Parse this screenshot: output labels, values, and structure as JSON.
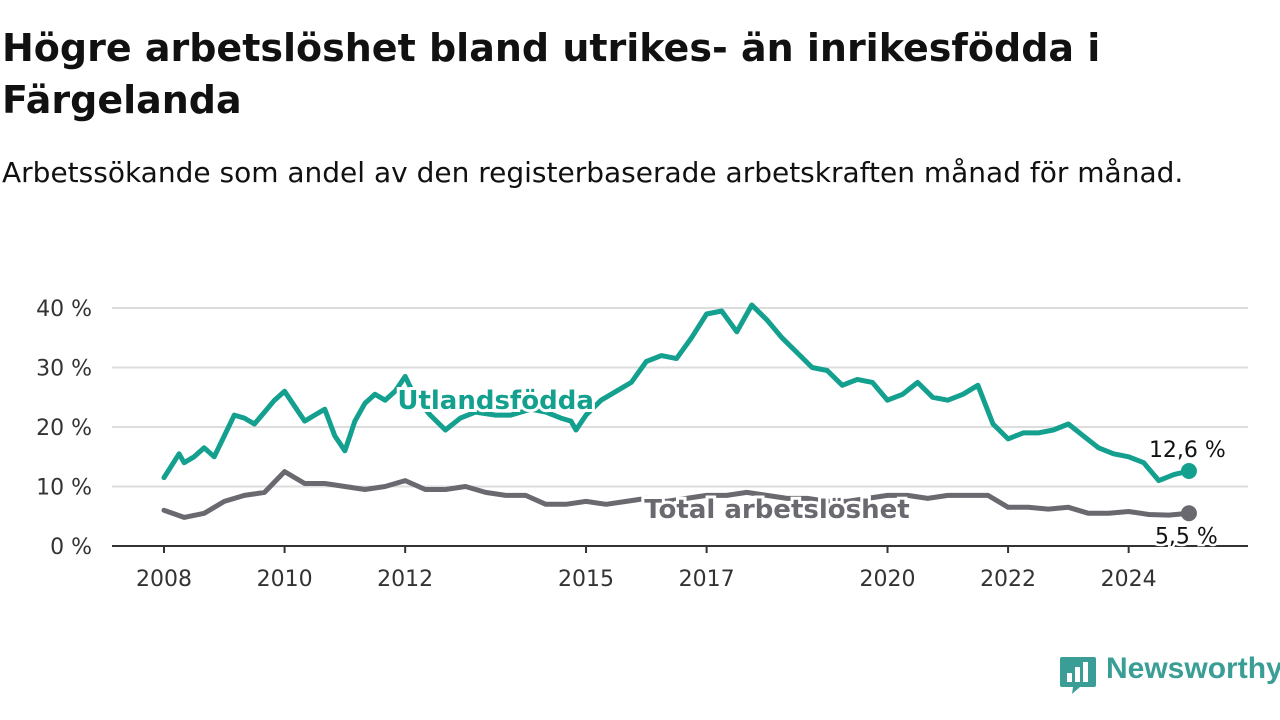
{
  "title": "Högre arbetslöshet bland utrikes- än inrikesfödda i Färgelanda",
  "subtitle": "Arbetssökande som andel av den registerbaserade arbetskraften månad för månad.",
  "brand": {
    "name": "Newsworthy",
    "icon": "newsworthy-chart-bubble-icon",
    "color": "#3a9e96"
  },
  "chart_data": {
    "type": "line",
    "xlabel": "",
    "ylabel": "",
    "ylim": [
      0,
      40
    ],
    "yticks": [
      0,
      10,
      20,
      30,
      40
    ],
    "ytick_labels": [
      "0 %",
      "10 %",
      "20 %",
      "30 %",
      "40 %"
    ],
    "xlim": [
      "2008-01",
      "2025-03"
    ],
    "xticks": [
      "2008-01",
      "2010-01",
      "2012-01",
      "2015-01",
      "2017-01",
      "2020-01",
      "2022-01",
      "2024-01"
    ],
    "xtick_labels": [
      "2008",
      "2010",
      "2012",
      "2015",
      "2017",
      "2020",
      "2022",
      "2024"
    ],
    "grid": "horizontal",
    "legend": "inline labels",
    "series": [
      {
        "name": "Utlandsfödda",
        "color": "#14a08e",
        "end_label": "12,6 %",
        "points": [
          [
            "2008-01",
            11.5
          ],
          [
            "2008-04",
            15.5
          ],
          [
            "2008-05",
            14.0
          ],
          [
            "2008-07",
            15.0
          ],
          [
            "2008-09",
            16.5
          ],
          [
            "2008-11",
            15.0
          ],
          [
            "2009-01",
            18.5
          ],
          [
            "2009-03",
            22.0
          ],
          [
            "2009-05",
            21.5
          ],
          [
            "2009-07",
            20.5
          ],
          [
            "2009-09",
            22.5
          ],
          [
            "2009-11",
            24.5
          ],
          [
            "2010-01",
            26.0
          ],
          [
            "2010-03",
            23.5
          ],
          [
            "2010-05",
            21.0
          ],
          [
            "2010-07",
            22.0
          ],
          [
            "2010-09",
            23.0
          ],
          [
            "2010-11",
            18.5
          ],
          [
            "2011-01",
            16.0
          ],
          [
            "2011-03",
            21.0
          ],
          [
            "2011-05",
            24.0
          ],
          [
            "2011-07",
            25.5
          ],
          [
            "2011-09",
            24.5
          ],
          [
            "2011-11",
            26.0
          ],
          [
            "2012-01",
            28.5
          ],
          [
            "2012-03",
            25.0
          ],
          [
            "2012-06",
            22.0
          ],
          [
            "2012-09",
            19.5
          ],
          [
            "2012-12",
            21.5
          ],
          [
            "2013-03",
            22.5
          ],
          [
            "2013-07",
            22.0
          ],
          [
            "2013-10",
            22.0
          ],
          [
            "2014-02",
            23.0
          ],
          [
            "2014-05",
            22.5
          ],
          [
            "2014-08",
            21.5
          ],
          [
            "2014-10",
            21.0
          ],
          [
            "2014-11",
            19.5
          ],
          [
            "2015-01",
            22.0
          ],
          [
            "2015-04",
            24.5
          ],
          [
            "2015-07",
            26.0
          ],
          [
            "2015-10",
            27.5
          ],
          [
            "2016-01",
            31.0
          ],
          [
            "2016-04",
            32.0
          ],
          [
            "2016-07",
            31.5
          ],
          [
            "2016-10",
            35.0
          ],
          [
            "2017-01",
            39.0
          ],
          [
            "2017-04",
            39.5
          ],
          [
            "2017-07",
            36.0
          ],
          [
            "2017-10",
            40.5
          ],
          [
            "2018-01",
            38.0
          ],
          [
            "2018-04",
            35.0
          ],
          [
            "2018-07",
            32.5
          ],
          [
            "2018-10",
            30.0
          ],
          [
            "2019-01",
            29.5
          ],
          [
            "2019-04",
            27.0
          ],
          [
            "2019-07",
            28.0
          ],
          [
            "2019-10",
            27.5
          ],
          [
            "2020-01",
            24.5
          ],
          [
            "2020-04",
            25.5
          ],
          [
            "2020-07",
            27.5
          ],
          [
            "2020-10",
            25.0
          ],
          [
            "2021-01",
            24.5
          ],
          [
            "2021-04",
            25.5
          ],
          [
            "2021-07",
            27.0
          ],
          [
            "2021-10",
            20.5
          ],
          [
            "2022-01",
            18.0
          ],
          [
            "2022-04",
            19.0
          ],
          [
            "2022-07",
            19.0
          ],
          [
            "2022-10",
            19.5
          ],
          [
            "2023-01",
            20.5
          ],
          [
            "2023-04",
            18.5
          ],
          [
            "2023-07",
            16.5
          ],
          [
            "2023-10",
            15.5
          ],
          [
            "2024-01",
            15.0
          ],
          [
            "2024-04",
            14.0
          ],
          [
            "2024-07",
            11.0
          ],
          [
            "2024-10",
            12.0
          ],
          [
            "2025-01",
            12.6
          ]
        ]
      },
      {
        "name": "Total arbetslöshet",
        "color": "#6b6970",
        "end_label": "5,5 %",
        "points": [
          [
            "2008-01",
            6.0
          ],
          [
            "2008-05",
            4.8
          ],
          [
            "2008-09",
            5.5
          ],
          [
            "2009-01",
            7.5
          ],
          [
            "2009-05",
            8.5
          ],
          [
            "2009-09",
            9.0
          ],
          [
            "2010-01",
            12.5
          ],
          [
            "2010-05",
            10.5
          ],
          [
            "2010-09",
            10.5
          ],
          [
            "2011-01",
            10.0
          ],
          [
            "2011-05",
            9.5
          ],
          [
            "2011-09",
            10.0
          ],
          [
            "2012-01",
            11.0
          ],
          [
            "2012-05",
            9.5
          ],
          [
            "2012-09",
            9.5
          ],
          [
            "2013-01",
            10.0
          ],
          [
            "2013-05",
            9.0
          ],
          [
            "2013-09",
            8.5
          ],
          [
            "2014-01",
            8.5
          ],
          [
            "2014-05",
            7.0
          ],
          [
            "2014-09",
            7.0
          ],
          [
            "2015-01",
            7.5
          ],
          [
            "2015-05",
            7.0
          ],
          [
            "2015-09",
            7.5
          ],
          [
            "2016-01",
            8.0
          ],
          [
            "2016-05",
            7.5
          ],
          [
            "2016-09",
            8.0
          ],
          [
            "2017-01",
            8.5
          ],
          [
            "2017-05",
            8.5
          ],
          [
            "2017-09",
            9.0
          ],
          [
            "2018-01",
            8.5
          ],
          [
            "2018-05",
            8.0
          ],
          [
            "2018-09",
            8.0
          ],
          [
            "2019-01",
            7.5
          ],
          [
            "2019-05",
            7.5
          ],
          [
            "2019-09",
            8.0
          ],
          [
            "2020-01",
            8.5
          ],
          [
            "2020-05",
            8.5
          ],
          [
            "2020-09",
            8.0
          ],
          [
            "2021-01",
            8.5
          ],
          [
            "2021-05",
            8.5
          ],
          [
            "2021-09",
            8.5
          ],
          [
            "2022-01",
            6.5
          ],
          [
            "2022-05",
            6.5
          ],
          [
            "2022-09",
            6.2
          ],
          [
            "2023-01",
            6.5
          ],
          [
            "2023-05",
            5.5
          ],
          [
            "2023-09",
            5.5
          ],
          [
            "2024-01",
            5.8
          ],
          [
            "2024-05",
            5.3
          ],
          [
            "2024-09",
            5.2
          ],
          [
            "2025-01",
            5.5
          ]
        ]
      }
    ]
  }
}
